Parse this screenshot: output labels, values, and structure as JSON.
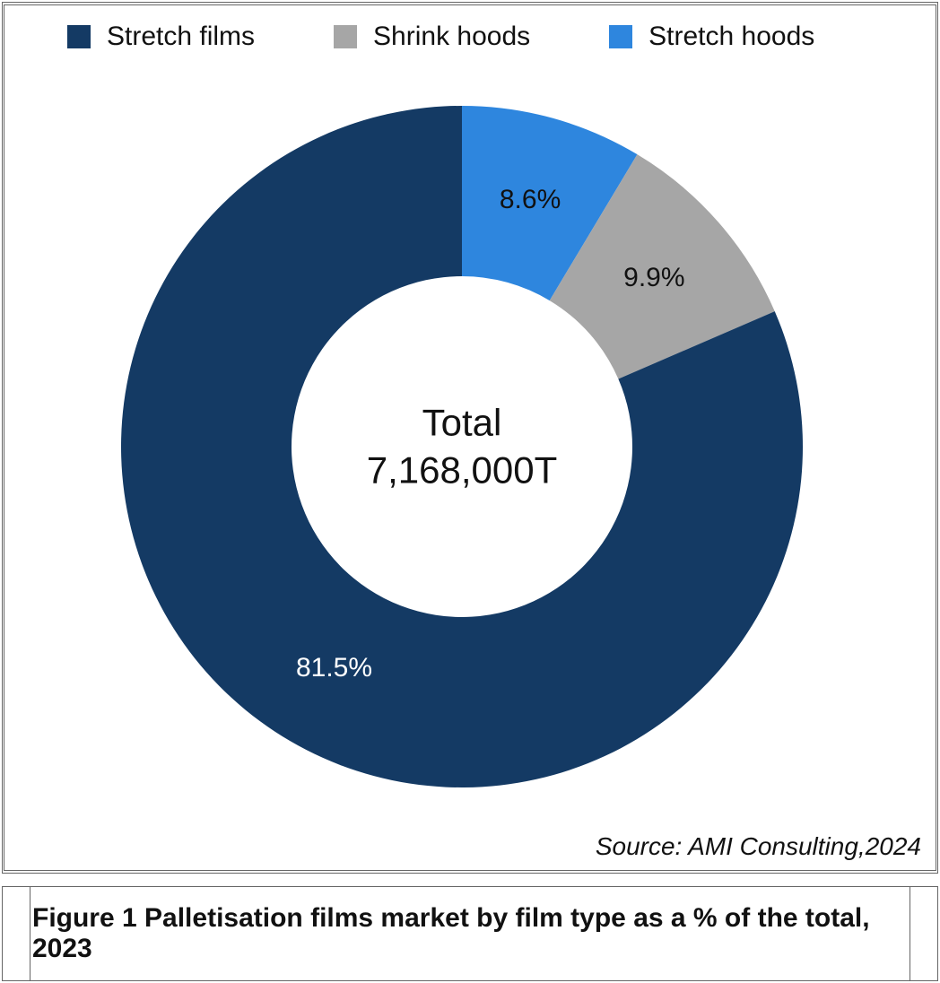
{
  "chart": {
    "type": "donut",
    "background_color": "#ffffff",
    "border_color": "#666666",
    "outer_radius": 380,
    "inner_radius": 190,
    "start_angle_deg": -90,
    "series": [
      {
        "label": "Stretch hoods",
        "value": 8.6,
        "display": "8.6%",
        "color": "#2e86de",
        "text_color": "#111111"
      },
      {
        "label": "Shrink hoods",
        "value": 9.9,
        "display": "9.9%",
        "color": "#a6a6a6",
        "text_color": "#111111"
      },
      {
        "label": "Stretch films",
        "value": 81.5,
        "display": "81.5%",
        "color": "#143a64",
        "text_color": "#ffffff"
      }
    ],
    "legend_order": [
      "Stretch films",
      "Shrink hoods",
      "Stretch hoods"
    ],
    "legend_swatch_size": 26,
    "legend_fontsize": 30,
    "center": {
      "title": "Total",
      "value": "7,168,000T",
      "fontsize": 42,
      "color": "#111111"
    },
    "slice_label_fontsize": 30,
    "source": "Source: AMI Consulting,2024",
    "source_fontsize": 28,
    "source_fontstyle": "italic"
  },
  "caption": {
    "text": "Figure 1 Palletisation films market by film type as a % of the total, 2023",
    "fontsize": 30,
    "fontweight": "bold"
  }
}
